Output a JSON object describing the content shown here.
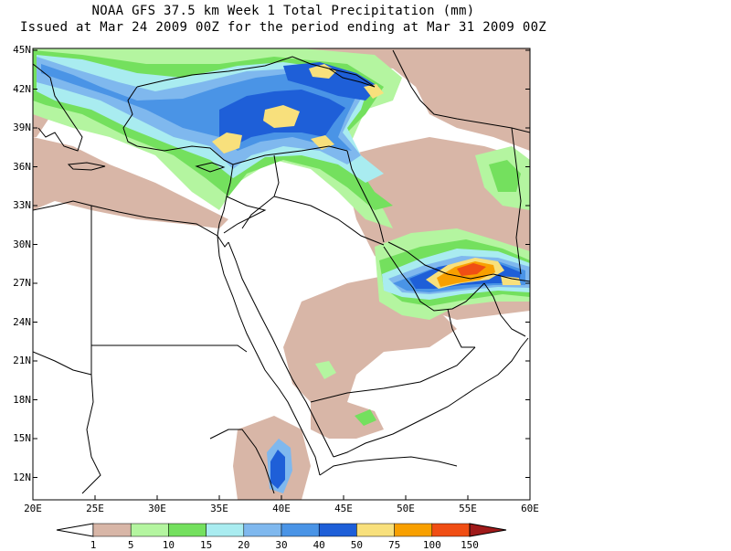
{
  "title": {
    "line1": "NOAA GFS 37.5 km Week 1 Total Precipitation (mm)",
    "line2": "Issued at Mar 24 2009 00Z for the period ending at Mar 31 2009 00Z"
  },
  "lat_labels": [
    "45N",
    "42N",
    "39N",
    "36N",
    "33N",
    "30N",
    "27N",
    "24N",
    "21N",
    "18N",
    "15N",
    "12N"
  ],
  "lon_labels": [
    "20E",
    "25E",
    "30E",
    "35E",
    "40E",
    "45E",
    "50E",
    "55E",
    "60E"
  ],
  "colorbar": {
    "labels": [
      "1",
      "5",
      "10",
      "15",
      "20",
      "30",
      "40",
      "50",
      "75",
      "100",
      "150"
    ],
    "colors": [
      "#ffffff",
      "#d8b6a7",
      "#b4f5a0",
      "#74e05e",
      "#a9ecf0",
      "#7fb8ee",
      "#4a94e6",
      "#1e5fd8",
      "#f8e07c",
      "#f8a000",
      "#f04e14",
      "#a01a1a"
    ]
  },
  "palette": {
    "brown": "#d8b6a7",
    "lightgreen": "#b4f5a0",
    "green": "#74e05e",
    "cyan": "#a9ecf0",
    "lightblue": "#7fb8ee",
    "blue": "#4a94e6",
    "darkblue": "#1e5fd8",
    "yellow": "#f8e07c",
    "orange": "#f8a000",
    "red": "#f04e14"
  }
}
